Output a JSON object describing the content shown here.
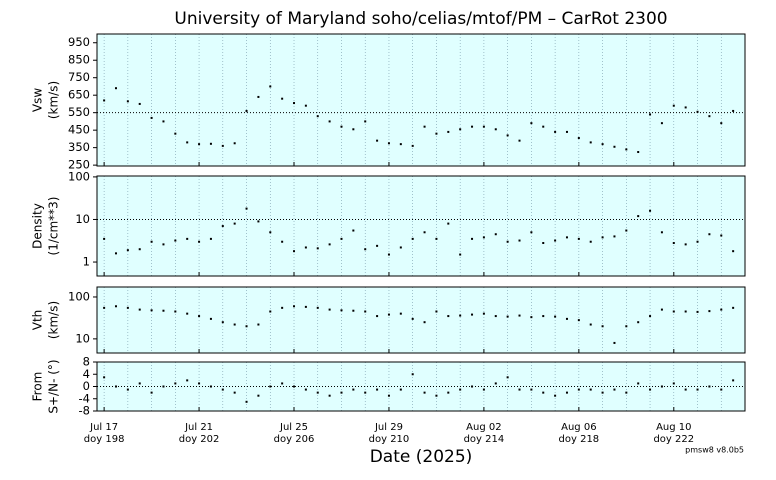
{
  "title": "University of Maryland  soho/celias/mtof/PM – CarRot 2300",
  "xlabel": "Date (2025)",
  "footer": "pmsw8 v8.0b5",
  "chart_data": [
    {
      "type": "scatter",
      "ylabel": [
        "Vsw",
        "(km/s)"
      ],
      "color": "#000000",
      "xlim": [
        197.7,
        225.0
      ],
      "ylim": [
        245,
        1000
      ],
      "log_y": false,
      "yticks": [
        250,
        350,
        450,
        550,
        650,
        750,
        850,
        950
      ],
      "hline": 550,
      "x": [
        198,
        198.5,
        199,
        199.5,
        200,
        200.5,
        201,
        201.5,
        202,
        202.5,
        203,
        203.5,
        204,
        204.5,
        205,
        205.5,
        206,
        206.5,
        207,
        207.5,
        208,
        208.5,
        209,
        209.5,
        210,
        210.5,
        211,
        211.5,
        212,
        212.5,
        213,
        213.5,
        214,
        214.5,
        215,
        215.5,
        216,
        216.5,
        217,
        217.5,
        218,
        218.5,
        219,
        219.5,
        220,
        220.5,
        221,
        221.5,
        222,
        222.5,
        223,
        223.5,
        224,
        224.5
      ],
      "values": [
        620,
        690,
        615,
        600,
        520,
        500,
        430,
        380,
        370,
        372,
        360,
        375,
        560,
        640,
        700,
        630,
        605,
        590,
        530,
        500,
        470,
        455,
        500,
        390,
        375,
        370,
        360,
        470,
        430,
        440,
        455,
        470,
        470,
        455,
        420,
        390,
        490,
        470,
        440,
        440,
        405,
        380,
        370,
        355,
        340,
        325,
        540,
        490,
        590,
        580,
        555,
        530,
        490,
        560
      ]
    },
    {
      "type": "scatter",
      "ylabel": [
        "Density",
        "(1/cm**3)"
      ],
      "color": "#000000",
      "xlim": [
        197.7,
        225.0
      ],
      "ylim": [
        0.47,
        105
      ],
      "log_y": true,
      "yticks": [
        1,
        10,
        100
      ],
      "hline": 10,
      "x": [
        198,
        198.5,
        199,
        199.5,
        200,
        200.5,
        201,
        201.5,
        202,
        202.5,
        203,
        203.5,
        204,
        204.5,
        205,
        205.5,
        206,
        206.5,
        207,
        207.5,
        208,
        208.5,
        209,
        209.5,
        210,
        210.5,
        211,
        211.5,
        212,
        212.5,
        213,
        213.5,
        214,
        214.5,
        215,
        215.5,
        216,
        216.5,
        217,
        217.5,
        218,
        218.5,
        219,
        219.5,
        220,
        220.5,
        221,
        221.5,
        222,
        222.5,
        223,
        223.5,
        224,
        224.5
      ],
      "values": [
        3.5,
        1.6,
        1.9,
        2.0,
        3.0,
        2.6,
        3.2,
        3.5,
        3.0,
        3.5,
        7.0,
        8.0,
        18,
        9,
        5,
        3.0,
        1.8,
        2.2,
        2.1,
        2.6,
        3.5,
        5.5,
        2.0,
        2.4,
        1.5,
        2.2,
        3.5,
        5.0,
        3.5,
        8.0,
        1.5,
        3.5,
        3.8,
        4.5,
        3.0,
        3.2,
        5.0,
        2.8,
        3.2,
        3.8,
        3.5,
        3.0,
        3.8,
        4.0,
        5.5,
        12,
        16,
        5,
        2.8,
        2.6,
        3.0,
        4.5,
        4.2,
        1.8
      ]
    },
    {
      "type": "scatter",
      "ylabel": [
        "Vth",
        "(km/s)"
      ],
      "color": "#000000",
      "xlim": [
        197.7,
        225.0
      ],
      "ylim": [
        4.6,
        173
      ],
      "log_y": true,
      "yticks": [
        10,
        100
      ],
      "x": [
        198,
        198.5,
        199,
        199.5,
        200,
        200.5,
        201,
        201.5,
        202,
        202.5,
        203,
        203.5,
        204,
        204.5,
        205,
        205.5,
        206,
        206.5,
        207,
        207.5,
        208,
        208.5,
        209,
        209.5,
        210,
        210.5,
        211,
        211.5,
        212,
        212.5,
        213,
        213.5,
        214,
        214.5,
        215,
        215.5,
        216,
        216.5,
        217,
        217.5,
        218,
        218.5,
        219,
        219.5,
        220,
        220.5,
        221,
        221.5,
        222,
        222.5,
        223,
        223.5,
        224,
        224.5
      ],
      "values": [
        55,
        60,
        55,
        50,
        48,
        47,
        45,
        40,
        35,
        30,
        25,
        22,
        20,
        22,
        45,
        55,
        60,
        58,
        55,
        50,
        48,
        47,
        45,
        35,
        38,
        40,
        30,
        25,
        45,
        35,
        36,
        38,
        40,
        35,
        34,
        36,
        33,
        35,
        34,
        30,
        28,
        22,
        20,
        8,
        20,
        25,
        35,
        50,
        45,
        45,
        44,
        46,
        50,
        55
      ]
    },
    {
      "type": "scatter",
      "ylabel": [
        "From",
        "S+/N- (°)"
      ],
      "color": "#000000",
      "xlim": [
        197.7,
        225.0
      ],
      "ylim": [
        -8,
        8
      ],
      "log_y": false,
      "yticks": [
        -8,
        -4,
        0,
        4,
        8
      ],
      "hline": 0,
      "xticks": [
        {
          "value": 198,
          "label": "Jul 17",
          "doy": "doy 198"
        },
        {
          "value": 202,
          "label": "Jul 21",
          "doy": "doy 202"
        },
        {
          "value": 206,
          "label": "Jul 25",
          "doy": "doy 206"
        },
        {
          "value": 210,
          "label": "Jul 29",
          "doy": "doy 210"
        },
        {
          "value": 214,
          "label": "Aug 02",
          "doy": "doy 214"
        },
        {
          "value": 218,
          "label": "Aug 06",
          "doy": "doy 218"
        },
        {
          "value": 222,
          "label": "Aug 10",
          "doy": "doy 222"
        }
      ],
      "xminor": [
        198,
        199,
        200,
        201,
        202,
        203,
        204,
        205,
        206,
        207,
        208,
        209,
        210,
        211,
        212,
        213,
        214,
        215,
        216,
        217,
        218,
        219,
        220,
        221,
        222,
        223,
        224
      ],
      "x": [
        198,
        198.5,
        199,
        199.5,
        200,
        200.5,
        201,
        201.5,
        202,
        202.5,
        203,
        203.5,
        204,
        204.5,
        205,
        205.5,
        206,
        206.5,
        207,
        207.5,
        208,
        208.5,
        209,
        209.5,
        210,
        210.5,
        211,
        211.5,
        212,
        212.5,
        213,
        213.5,
        214,
        214.5,
        215,
        215.5,
        216,
        216.5,
        217,
        217.5,
        218,
        218.5,
        219,
        219.5,
        220,
        220.5,
        221,
        221.5,
        222,
        222.5,
        223,
        223.5,
        224,
        224.5
      ],
      "values": [
        3,
        0,
        -1,
        1,
        -2,
        0,
        1,
        2,
        1,
        0,
        -1,
        -2,
        -5,
        -3,
        0,
        1,
        0,
        -1,
        -2,
        -3,
        -2,
        -1,
        -2,
        -1,
        -3,
        -1,
        4,
        -2,
        -3,
        -2,
        -1,
        0,
        -1,
        1,
        3,
        -1,
        -1,
        -2,
        -3,
        -2,
        -1,
        -1,
        -2,
        -1,
        -2,
        1,
        -1,
        0,
        1,
        -1,
        -1,
        0,
        -1,
        2
      ]
    }
  ]
}
